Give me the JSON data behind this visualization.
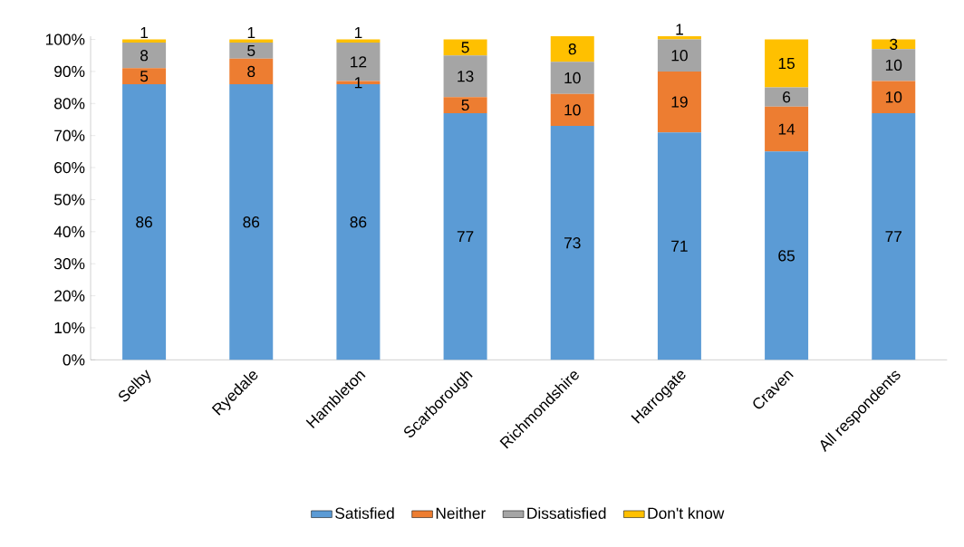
{
  "chart_data": {
    "type": "bar",
    "stacked": true,
    "categories": [
      "Selby",
      "Ryedale",
      "Hambleton",
      "Scarborough",
      "Richmondshire",
      "Harrogate",
      "Craven",
      "All respondents"
    ],
    "series": [
      {
        "name": "Satisfied",
        "color": "#5b9bd5",
        "values": [
          86,
          86,
          86,
          77,
          73,
          71,
          65,
          77
        ]
      },
      {
        "name": "Neither",
        "color": "#ed7d31",
        "values": [
          5,
          8,
          1,
          5,
          10,
          19,
          14,
          10
        ]
      },
      {
        "name": "Dissatisfied",
        "color": "#a5a5a5",
        "values": [
          8,
          5,
          12,
          13,
          10,
          10,
          6,
          10
        ]
      },
      {
        "name": "Don't know",
        "color": "#ffc000",
        "values": [
          1,
          1,
          1,
          5,
          8,
          1,
          15,
          3
        ]
      }
    ],
    "ylim": [
      0,
      101
    ],
    "yticks": [
      {
        "value": 0,
        "label": "0%"
      },
      {
        "value": 10,
        "label": "10%"
      },
      {
        "value": 20,
        "label": "20%"
      },
      {
        "value": 30,
        "label": "30%"
      },
      {
        "value": 40,
        "label": "40%"
      },
      {
        "value": 50,
        "label": "50%"
      },
      {
        "value": 60,
        "label": "60%"
      },
      {
        "value": 70,
        "label": "70%"
      },
      {
        "value": 80,
        "label": "80%"
      },
      {
        "value": 90,
        "label": "90%"
      },
      {
        "value": 100,
        "label": "100%"
      }
    ],
    "data_labels": true,
    "grid": false,
    "legend": "bottom"
  }
}
